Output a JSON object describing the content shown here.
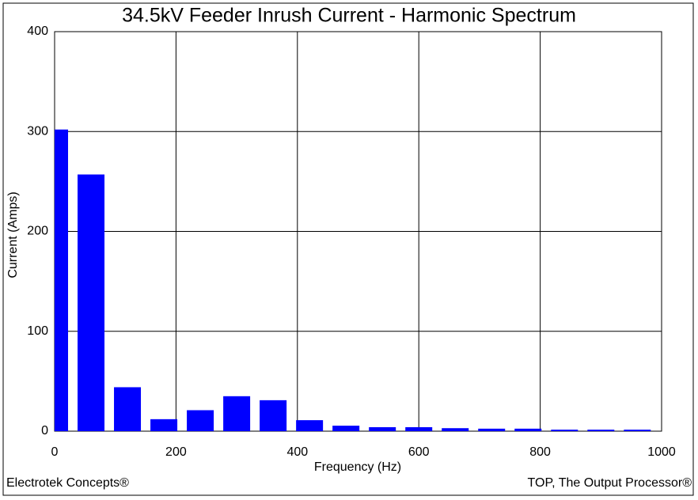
{
  "chart_data": {
    "type": "bar",
    "title": "34.5kV Feeder Inrush Current - Harmonic Spectrum",
    "x_label": "Frequency (Hz)",
    "y_label": "Current (Amps)",
    "x": [
      0,
      60,
      120,
      180,
      240,
      300,
      360,
      420,
      480,
      540,
      600,
      660,
      720,
      780,
      840,
      900,
      960
    ],
    "values": [
      302,
      257,
      44,
      12,
      21,
      35,
      31,
      11,
      5.5,
      4,
      4,
      3,
      2.5,
      2.5,
      1.5,
      1.5,
      1.5
    ],
    "color": "#0000ff",
    "xlim": [
      0,
      1000
    ],
    "xticks": [
      0,
      200,
      400,
      600,
      800,
      1000
    ],
    "ylim": [
      0,
      400
    ],
    "yticks": [
      0,
      100,
      200,
      300,
      400
    ],
    "grid": true
  },
  "footer": {
    "left": "Electrotek Concepts®",
    "right": "TOP, The Output Processor®"
  }
}
